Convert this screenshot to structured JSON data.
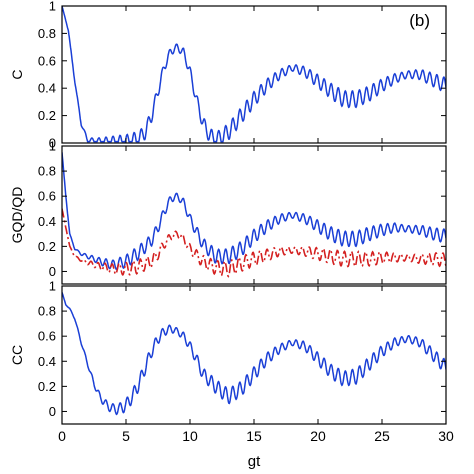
{
  "panel_label": "(b)",
  "colors": {
    "blue": "#1a3fd6",
    "red": "#d42020",
    "axis": "#000000"
  },
  "chart_data": [
    {
      "type": "line",
      "ylabel": "C",
      "xlim": [
        0,
        30
      ],
      "ylim": [
        0,
        1
      ],
      "yticks": [
        0,
        0.2,
        0.4,
        0.6,
        0.8,
        1
      ],
      "ytick_labels": [
        "0",
        "0.2",
        "0.4",
        "0.6",
        "0.8",
        "1"
      ],
      "series": [
        {
          "color": "#1a3fd6",
          "style": "solid",
          "x": [
            0,
            0.5,
            1,
            1.5,
            2,
            3,
            4,
            5,
            6,
            6.5,
            7,
            7.5,
            8,
            8.5,
            9,
            9.5,
            10,
            10.5,
            11,
            11.5,
            12,
            13,
            14,
            15,
            16,
            17,
            18,
            19,
            20,
            21,
            22,
            23,
            24,
            25,
            26,
            27,
            28,
            29,
            30
          ],
          "y": [
            1,
            0.82,
            0.45,
            0.14,
            0.02,
            0.01,
            0.01,
            0.01,
            0.03,
            0.08,
            0.2,
            0.38,
            0.56,
            0.67,
            0.7,
            0.66,
            0.52,
            0.32,
            0.15,
            0.06,
            0.02,
            0.08,
            0.2,
            0.32,
            0.42,
            0.5,
            0.55,
            0.52,
            0.45,
            0.38,
            0.32,
            0.32,
            0.36,
            0.42,
            0.47,
            0.5,
            0.5,
            0.46,
            0.42
          ],
          "oscillating": true
        }
      ]
    },
    {
      "type": "line",
      "ylabel": "GQD/QD",
      "xlim": [
        0,
        30
      ],
      "ylim": [
        -0.1,
        1
      ],
      "yticks": [
        0,
        0.2,
        0.4,
        0.6,
        0.8,
        1
      ],
      "ytick_labels": [
        "0",
        "0.2",
        "0.4",
        "0.6",
        "0.8",
        "1"
      ],
      "series": [
        {
          "color": "#1a3fd6",
          "style": "solid",
          "x": [
            0,
            0.3,
            0.6,
            1,
            1.5,
            2,
            3,
            4,
            5,
            6,
            7,
            7.5,
            8,
            8.5,
            9,
            9.5,
            10,
            11,
            12,
            13,
            14,
            15,
            16,
            17,
            18,
            19,
            20,
            21,
            22,
            23,
            24,
            25,
            26,
            27,
            28,
            29,
            30
          ],
          "y": [
            0.95,
            0.6,
            0.3,
            0.18,
            0.14,
            0.12,
            0.08,
            0.05,
            0.08,
            0.15,
            0.25,
            0.35,
            0.48,
            0.58,
            0.6,
            0.55,
            0.42,
            0.22,
            0.12,
            0.12,
            0.18,
            0.28,
            0.36,
            0.42,
            0.45,
            0.42,
            0.36,
            0.3,
            0.26,
            0.26,
            0.3,
            0.33,
            0.35,
            0.34,
            0.33,
            0.3,
            0.28
          ],
          "oscillating": true
        },
        {
          "color": "#d42020",
          "style": "dashdot",
          "x": [
            0,
            0.3,
            0.6,
            1,
            1.5,
            2,
            3,
            4,
            5,
            6,
            7,
            7.5,
            8,
            8.5,
            9,
            9.5,
            10,
            11,
            12,
            13,
            14,
            15,
            16,
            17,
            18,
            19,
            20,
            21,
            22,
            23,
            24,
            25,
            26,
            27,
            28,
            29,
            30
          ],
          "y": [
            0.5,
            0.35,
            0.2,
            0.12,
            0.09,
            0.07,
            0.04,
            0.02,
            0.02,
            0.04,
            0.08,
            0.14,
            0.22,
            0.28,
            0.3,
            0.26,
            0.18,
            0.08,
            0.03,
            0.02,
            0.06,
            0.1,
            0.13,
            0.16,
            0.17,
            0.16,
            0.14,
            0.12,
            0.1,
            0.1,
            0.1,
            0.11,
            0.11,
            0.11,
            0.1,
            0.1,
            0.09
          ],
          "oscillating": true
        }
      ]
    },
    {
      "type": "line",
      "ylabel": "CC",
      "xlabel": "gt",
      "xlim": [
        0,
        30
      ],
      "ylim": [
        -0.1,
        1
      ],
      "xticks": [
        0,
        5,
        10,
        15,
        20,
        25,
        30
      ],
      "xtick_labels": [
        "0",
        "5",
        "10",
        "15",
        "20",
        "25",
        "30"
      ],
      "yticks": [
        0,
        0.2,
        0.4,
        0.6,
        0.8,
        1
      ],
      "ytick_labels": [
        "0",
        "0.2",
        "0.4",
        "0.6",
        "0.8",
        "1"
      ],
      "series": [
        {
          "color": "#1a3fd6",
          "style": "solid",
          "x": [
            0,
            0.3,
            0.6,
            1,
            1.5,
            2,
            2.5,
            3,
            3.5,
            4,
            4.5,
            5,
            5.5,
            6,
            6.5,
            7,
            7.5,
            8,
            8.5,
            9,
            9.5,
            10,
            10.5,
            11,
            12,
            13,
            14,
            15,
            16,
            17,
            18,
            19,
            20,
            21,
            22,
            23,
            24,
            25,
            26,
            27,
            28,
            29,
            30
          ],
          "y": [
            0.95,
            0.85,
            0.82,
            0.74,
            0.55,
            0.38,
            0.22,
            0.11,
            0.05,
            0.02,
            0.02,
            0.05,
            0.12,
            0.22,
            0.35,
            0.48,
            0.58,
            0.64,
            0.66,
            0.64,
            0.6,
            0.52,
            0.42,
            0.3,
            0.2,
            0.12,
            0.18,
            0.3,
            0.42,
            0.5,
            0.55,
            0.52,
            0.42,
            0.32,
            0.26,
            0.28,
            0.38,
            0.48,
            0.55,
            0.58,
            0.55,
            0.45,
            0.35
          ],
          "oscillating": true
        }
      ]
    }
  ]
}
